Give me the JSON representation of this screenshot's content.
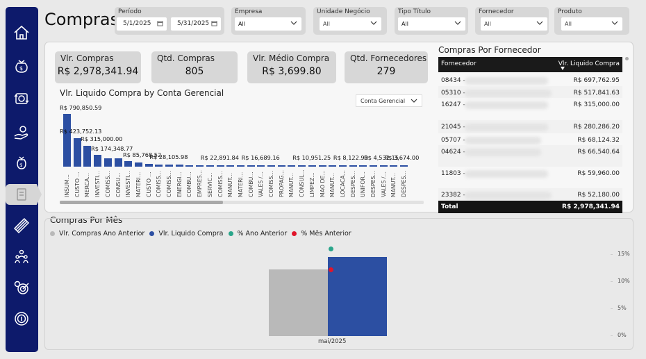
{
  "title": "Compras",
  "colors": {
    "sidebar": "#0d1a6b",
    "bar": "#2c4fa2",
    "gray_bar": "#b9b9b9",
    "teal": "#2aa58a",
    "red": "#e0152b"
  },
  "filters": {
    "periodo": {
      "label": "Período",
      "start": "5/1/2025",
      "end": "5/31/2025"
    },
    "empresa": {
      "label": "Empresa",
      "value": "All"
    },
    "unidade": {
      "label": "Unidade Negócio",
      "value": "All"
    },
    "tipo": {
      "label": "Tipo Título",
      "value": "All"
    },
    "fornecedor": {
      "label": "Fornecedor",
      "value": "All"
    },
    "produto": {
      "label": "Produto",
      "value": "All"
    }
  },
  "kpis": [
    {
      "label": "Vlr. Compras",
      "value": "R$ 2,978,341.94"
    },
    {
      "label": "Qtd. Compras",
      "value": "805"
    },
    {
      "label": "Vlr. Médio Compra",
      "value": "R$ 3,699.80"
    },
    {
      "label": "Qtd. Fornecedores",
      "value": "279"
    }
  ],
  "conta_select": "Conta Gerencial",
  "chart_data": [
    {
      "type": "bar",
      "title": "Vlr. Liquido Compra by Conta Gerencial",
      "categories": [
        "INSUM...",
        "CUSTO ...",
        "MERCA...",
        "INVESTI...",
        "COMISS...",
        "CONSU...",
        "INVESTI...",
        "MATERI...",
        "CUSTO ...",
        "COMISS...",
        "COMISS...",
        "ENERGI...",
        "COMBU...",
        "EMPRES...",
        "SERVIC...",
        "COMISS...",
        "MANUT...",
        "MATERI...",
        "COMBU...",
        "VALES /...",
        "COMISS...",
        "PROPAG...",
        "MANUT...",
        "CONSUL...",
        "LIMPEZ...",
        "MAO DE...",
        "MANUT...",
        "LOCACA...",
        "DESPES...",
        "UNIFOR...",
        "DESPES...",
        "VALES /...",
        "MANUT...",
        "DESPES..."
      ],
      "values": [
        790850.59,
        423752.13,
        315000.0,
        174348.77,
        128000,
        120000,
        85768.52,
        60000,
        38000,
        28105.98,
        27000,
        26000,
        25000,
        24000,
        22891.84,
        22000,
        21000,
        20000,
        16689.16,
        15000,
        14000,
        13000,
        12000,
        10951.25,
        10000,
        9000,
        8500,
        8122.99,
        7000,
        5500,
        4532.15,
        4000,
        3674.0,
        3200
      ],
      "data_labels": [
        {
          "index": 0,
          "text": "R$ 790,850.59"
        },
        {
          "index": 1,
          "text": "R$ 423,752.13"
        },
        {
          "index": 2,
          "text": "R$ 315,000.00"
        },
        {
          "index": 3,
          "text": "R$ 174,348.77"
        },
        {
          "index": 6,
          "text": "R$ 85,768.52"
        },
        {
          "index": 9,
          "text": "R$ 28,105.98"
        },
        {
          "index": 14,
          "text": "R$ 22,891.84"
        },
        {
          "index": 18,
          "text": "R$ 16,689.16"
        },
        {
          "index": 23,
          "text": "R$ 10,951.25"
        },
        {
          "index": 27,
          "text": "R$ 8,122.99"
        },
        {
          "index": 30,
          "text": "R$ 4,532.15"
        },
        {
          "index": 32,
          "text": "R$ 3,674.00"
        }
      ],
      "ylim": [
        0,
        800000
      ]
    },
    {
      "type": "bar",
      "title": "Compras Por Mês",
      "categories": [
        "mai/2025"
      ],
      "series": [
        {
          "name": "Vlr. Compras Ano Anterior",
          "values": [
            0.72
          ]
        },
        {
          "name": "Vlr. Liquido Compra",
          "values": [
            0.85
          ]
        }
      ],
      "markers": [
        {
          "name": "% Ano Anterior",
          "value": 16.0
        },
        {
          "name": "% Mês Anterior",
          "value": 12.2
        }
      ],
      "y2_ticks": [
        "15%",
        "10%",
        "5%",
        "0%"
      ],
      "y2lim": [
        0,
        18
      ]
    }
  ],
  "table": {
    "title": "Compras Por Fornecedor",
    "col1": "Fornecedor",
    "col2": "Vlr. Liquido Compra",
    "rows": [
      {
        "code": "08434 -",
        "value": "R$ 697,762.95"
      },
      {
        "code": "05310 -",
        "value": "R$ 517,841.63"
      },
      {
        "code": "16247 -",
        "value": "R$ 315,000.00"
      },
      {
        "code": "21045 -",
        "value": "R$ 280,286.20"
      },
      {
        "code": "05707 -",
        "value": "R$ 68,124.32"
      },
      {
        "code": "04624 -",
        "value": "R$ 66,540.64"
      },
      {
        "code": "11803 -",
        "value": "R$ 59,960.00"
      },
      {
        "code": "23382 -",
        "value": "R$ 52,180.00"
      }
    ],
    "total_label": "Total",
    "total_value": "R$ 2,978,341.94"
  }
}
